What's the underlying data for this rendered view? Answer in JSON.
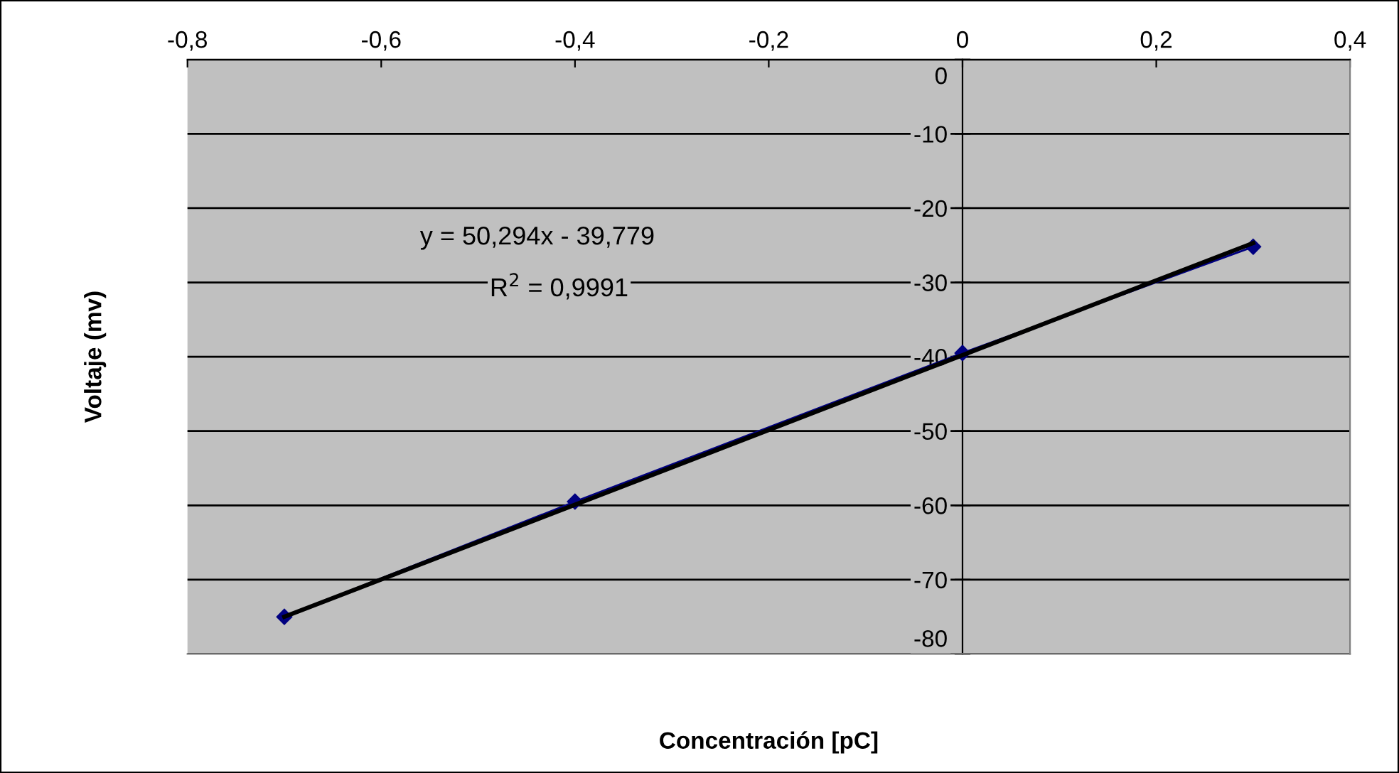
{
  "chart_data": {
    "type": "line",
    "xlabel": "Concentración [pC]",
    "ylabel": "Voltaje (mv)",
    "series": [
      {
        "color": "#000080",
        "x": [
          -0.7,
          -0.4,
          0,
          0.3
        ],
        "values": [
          -75,
          -59.5,
          -39.5,
          -25.2
        ],
        "marker": "diamond"
      },
      {
        "color": "#000000",
        "x": [
          -0.7,
          0.3
        ],
        "values": [
          -75,
          -24.7
        ]
      }
    ],
    "xlim": [
      -0.8,
      0.4
    ],
    "ylim": [
      -80,
      0
    ],
    "xticks": [
      {
        "value": -0.8,
        "label": "-0,8"
      },
      {
        "value": -0.6,
        "label": "-0,6"
      },
      {
        "value": -0.4,
        "label": "-0,4"
      },
      {
        "value": -0.2,
        "label": "-0,2"
      },
      0,
      {
        "value": 0.2,
        "label": "0,2"
      },
      {
        "value": 0.4,
        "label": "0,4"
      }
    ],
    "yticks": [
      0,
      -10,
      -20,
      -30,
      -40,
      -50,
      -60,
      -70,
      -80
    ],
    "grid": "y",
    "annotations": [
      "y = 50,294x - 39,779",
      "R$^{2}$ = 0,9991"
    ]
  }
}
